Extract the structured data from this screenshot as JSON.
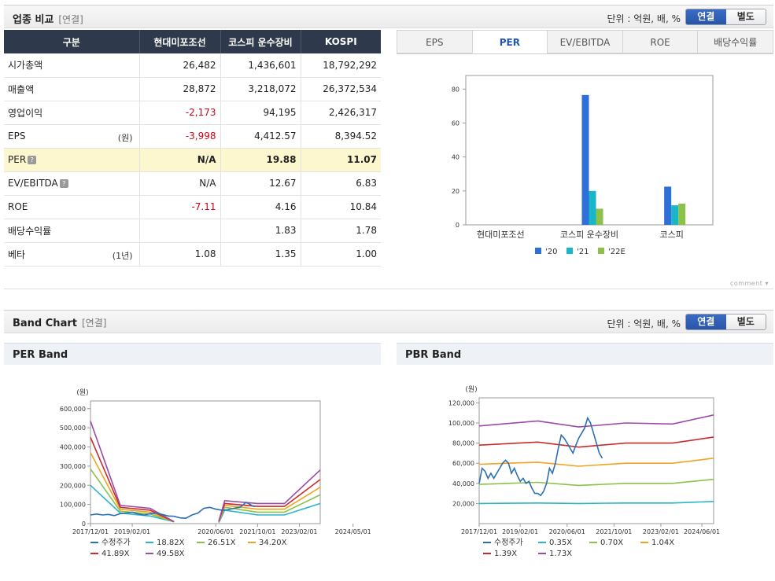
{
  "industry": {
    "title": "업종 비교",
    "basis": "[연결]",
    "unit_text": "단위 : 억원, 배, %",
    "toggle_on": "연결",
    "toggle_off": "별도",
    "headers": [
      "구분",
      "현대미포조선",
      "코스피 운수장비",
      "KOSPI"
    ],
    "rows": [
      {
        "label": "시가총액",
        "unit": "",
        "help": false,
        "highlight": false,
        "values": [
          "26,482",
          "1,436,601",
          "18,792,292"
        ],
        "neg": [
          false,
          false,
          false
        ]
      },
      {
        "label": "매출액",
        "unit": "",
        "help": false,
        "highlight": false,
        "values": [
          "28,872",
          "3,218,072",
          "26,372,534"
        ],
        "neg": [
          false,
          false,
          false
        ]
      },
      {
        "label": "영업이익",
        "unit": "",
        "help": false,
        "highlight": false,
        "values": [
          "-2,173",
          "94,195",
          "2,426,317"
        ],
        "neg": [
          true,
          false,
          false
        ]
      },
      {
        "label": "EPS",
        "unit": "(원)",
        "help": false,
        "highlight": false,
        "values": [
          "-3,998",
          "4,412.57",
          "8,394.52"
        ],
        "neg": [
          true,
          false,
          false
        ]
      },
      {
        "label": "PER",
        "unit": "",
        "help": true,
        "highlight": true,
        "values": [
          "N/A",
          "19.88",
          "11.07"
        ],
        "neg": [
          false,
          false,
          false
        ]
      },
      {
        "label": "EV/EBITDA",
        "unit": "",
        "help": true,
        "highlight": false,
        "values": [
          "N/A",
          "12.67",
          "6.83"
        ],
        "neg": [
          false,
          false,
          false
        ]
      },
      {
        "label": "ROE",
        "unit": "",
        "help": false,
        "highlight": false,
        "values": [
          "-7.11",
          "4.16",
          "10.84"
        ],
        "neg": [
          true,
          false,
          false
        ]
      },
      {
        "label": "배당수익률",
        "unit": "",
        "help": false,
        "highlight": false,
        "values": [
          "",
          "1.83",
          "1.78"
        ],
        "neg": [
          false,
          false,
          false
        ]
      },
      {
        "label": "베타",
        "unit": "(1년)",
        "help": false,
        "highlight": false,
        "values": [
          "1.08",
          "1.35",
          "1.00"
        ],
        "neg": [
          false,
          false,
          false
        ]
      }
    ],
    "help_glyph": "?",
    "tabs": [
      "EPS",
      "PER",
      "EV/EBITDA",
      "ROE",
      "배당수익률"
    ],
    "active_tab": "PER",
    "comment_label": "comment"
  },
  "band": {
    "title": "Band Chart",
    "basis": "[연결]",
    "unit_text": "단위 : 억원, 배, %",
    "toggle_on": "연결",
    "toggle_off": "별도",
    "per_title": "PER Band",
    "pbr_title": "PBR Band"
  },
  "chart_data": [
    {
      "id": "per_compare",
      "type": "bar",
      "categories": [
        "현대미포조선",
        "코스피 운수장비",
        "코스피"
      ],
      "series": [
        {
          "name": "'20",
          "color": "#2f6fd8",
          "values": [
            null,
            76.5,
            22.5
          ]
        },
        {
          "name": "'21",
          "color": "#19b5c9",
          "values": [
            null,
            20,
            11.5
          ]
        },
        {
          "name": "'22E",
          "color": "#8cc24a",
          "values": [
            null,
            9.5,
            12.5
          ]
        }
      ],
      "ylim": [
        0,
        88
      ],
      "yticks": [
        0,
        20,
        40,
        60,
        80
      ]
    },
    {
      "id": "per_band",
      "type": "line",
      "title": "PER Band",
      "ylabel": "(원)",
      "ylim": [
        0,
        640000
      ],
      "yticks": [
        0,
        100000,
        200000,
        300000,
        400000,
        500000,
        600000
      ],
      "ytick_labels": [
        "0",
        "100,000",
        "200,000",
        "300,000",
        "400,000",
        "500,000",
        "600,000"
      ],
      "xlim": [
        0,
        77
      ],
      "xticks": [
        0,
        14,
        42,
        56,
        70,
        88
      ],
      "xtick_labels": [
        "2017/12/01",
        "2019/02/01",
        "2020/06/01",
        "2021/10/01",
        "2023/02/01",
        "2024/05/01"
      ],
      "series": [
        {
          "name": "수정주가",
          "color": "#2c6fb4",
          "points": [
            [
              0,
              45000
            ],
            [
              2,
              50000
            ],
            [
              4,
              45000
            ],
            [
              6,
              48000
            ],
            [
              8,
              42000
            ],
            [
              10,
              52000
            ],
            [
              12,
              55000
            ],
            [
              14,
              60000
            ],
            [
              16,
              50000
            ],
            [
              18,
              45000
            ],
            [
              20,
              52000
            ],
            [
              22,
              55000
            ],
            [
              24,
              48000
            ],
            [
              26,
              40000
            ],
            [
              28,
              38000
            ],
            [
              30,
              30000
            ],
            [
              32,
              28000
            ],
            [
              34,
              45000
            ],
            [
              36,
              55000
            ],
            [
              38,
              80000
            ],
            [
              40,
              85000
            ],
            [
              42,
              75000
            ],
            [
              44,
              70000
            ],
            [
              46,
              72000
            ],
            [
              48,
              80000
            ],
            [
              50,
              85000
            ],
            [
              51,
              95000
            ],
            [
              52,
              110000
            ],
            [
              53,
              105000
            ],
            [
              54,
              95000
            ],
            [
              55,
              88000
            ]
          ]
        },
        {
          "name": "18.82X",
          "color": "#2bb5c9",
          "segments": [
            [
              [
                0,
                200000
              ],
              [
                10,
                55000
              ],
              [
                20,
                40000
              ],
              [
                28,
                10000
              ]
            ],
            [
              [
                43,
                5000
              ],
              [
                45,
                70000
              ],
              [
                56,
                45000
              ],
              [
                65,
                45000
              ],
              [
                77,
                105000
              ]
            ]
          ]
        },
        {
          "name": "26.51X",
          "color": "#8cc24a",
          "segments": [
            [
              [
                0,
                285000
              ],
              [
                10,
                65000
              ],
              [
                20,
                50000
              ],
              [
                28,
                10000
              ]
            ],
            [
              [
                43,
                7000
              ],
              [
                45,
                85000
              ],
              [
                56,
                60000
              ],
              [
                65,
                60000
              ],
              [
                77,
                150000
              ]
            ]
          ]
        },
        {
          "name": "34.20X",
          "color": "#f0a31e",
          "segments": [
            [
              [
                0,
                370000
              ],
              [
                10,
                75000
              ],
              [
                20,
                60000
              ],
              [
                28,
                10000
              ]
            ],
            [
              [
                43,
                9000
              ],
              [
                45,
                95000
              ],
              [
                56,
                75000
              ],
              [
                65,
                75000
              ],
              [
                77,
                190000
              ]
            ]
          ]
        },
        {
          "name": "41.89X",
          "color": "#cc2a2a",
          "segments": [
            [
              [
                0,
                450000
              ],
              [
                10,
                85000
              ],
              [
                20,
                70000
              ],
              [
                28,
                10000
              ]
            ],
            [
              [
                43,
                11000
              ],
              [
                45,
                105000
              ],
              [
                56,
                90000
              ],
              [
                65,
                90000
              ],
              [
                77,
                230000
              ]
            ]
          ]
        },
        {
          "name": "49.58X",
          "color": "#9b4aa8",
          "segments": [
            [
              [
                0,
                535000
              ],
              [
                10,
                95000
              ],
              [
                20,
                80000
              ],
              [
                28,
                10000
              ]
            ],
            [
              [
                43,
                13000
              ],
              [
                45,
                120000
              ],
              [
                56,
                105000
              ],
              [
                65,
                105000
              ],
              [
                77,
                280000
              ]
            ]
          ]
        }
      ]
    },
    {
      "id": "pbr_band",
      "type": "line",
      "title": "PBR Band",
      "ylabel": "(원)",
      "ylim": [
        0,
        125000
      ],
      "yticks": [
        20000,
        40000,
        60000,
        80000,
        100000,
        120000
      ],
      "ytick_labels": [
        "20,000",
        "40,000",
        "60,000",
        "80,000",
        "100,000",
        "120,000"
      ],
      "xlim": [
        0,
        80
      ],
      "xticks": [
        0,
        14,
        30,
        46,
        62,
        76
      ],
      "xtick_labels": [
        "2017/12/01",
        "2019/02/01",
        "2020/06/01",
        "2021/10/01",
        "2023/02/01",
        "2024/06/01"
      ],
      "series": [
        {
          "name": "수정주가",
          "color": "#2c6fb4",
          "points": [
            [
              0,
              40000
            ],
            [
              1,
              55000
            ],
            [
              2,
              52000
            ],
            [
              3,
              45000
            ],
            [
              4,
              50000
            ],
            [
              5,
              45000
            ],
            [
              6,
              50000
            ],
            [
              7,
              55000
            ],
            [
              8,
              60000
            ],
            [
              9,
              63000
            ],
            [
              10,
              60000
            ],
            [
              11,
              50000
            ],
            [
              12,
              55000
            ],
            [
              13,
              48000
            ],
            [
              14,
              42000
            ],
            [
              15,
              45000
            ],
            [
              16,
              40000
            ],
            [
              17,
              42000
            ],
            [
              18,
              35000
            ],
            [
              19,
              30000
            ],
            [
              20,
              30000
            ],
            [
              21,
              28000
            ],
            [
              22,
              32000
            ],
            [
              23,
              40000
            ],
            [
              24,
              55000
            ],
            [
              25,
              50000
            ],
            [
              26,
              60000
            ],
            [
              27,
              75000
            ],
            [
              28,
              88000
            ],
            [
              29,
              85000
            ],
            [
              30,
              80000
            ],
            [
              31,
              75000
            ],
            [
              32,
              70000
            ],
            [
              33,
              78000
            ],
            [
              34,
              85000
            ],
            [
              35,
              90000
            ],
            [
              36,
              95000
            ],
            [
              37,
              105000
            ],
            [
              38,
              100000
            ],
            [
              39,
              90000
            ],
            [
              40,
              80000
            ],
            [
              41,
              70000
            ],
            [
              42,
              65000
            ]
          ]
        },
        {
          "name": "0.35X",
          "color": "#2bb5c9",
          "points": [
            [
              0,
              20000
            ],
            [
              20,
              20500
            ],
            [
              34,
              20000
            ],
            [
              50,
              20500
            ],
            [
              66,
              20500
            ],
            [
              80,
              22000
            ]
          ]
        },
        {
          "name": "0.70X",
          "color": "#8cc24a",
          "points": [
            [
              0,
              39000
            ],
            [
              20,
              41000
            ],
            [
              34,
              38000
            ],
            [
              50,
              40000
            ],
            [
              66,
              40000
            ],
            [
              80,
              44000
            ]
          ]
        },
        {
          "name": "1.04X",
          "color": "#f0a31e",
          "points": [
            [
              0,
              59000
            ],
            [
              20,
              61000
            ],
            [
              34,
              57000
            ],
            [
              50,
              60000
            ],
            [
              66,
              60000
            ],
            [
              80,
              65000
            ]
          ]
        },
        {
          "name": "1.39X",
          "color": "#cc2a2a",
          "points": [
            [
              0,
              78000
            ],
            [
              20,
              81000
            ],
            [
              34,
              76000
            ],
            [
              50,
              80000
            ],
            [
              66,
              80000
            ],
            [
              80,
              86000
            ]
          ]
        },
        {
          "name": "1.73X",
          "color": "#9b4aa8",
          "points": [
            [
              0,
              97000
            ],
            [
              20,
              102000
            ],
            [
              34,
              96000
            ],
            [
              50,
              100000
            ],
            [
              66,
              99000
            ],
            [
              80,
              108000
            ]
          ]
        }
      ]
    }
  ]
}
